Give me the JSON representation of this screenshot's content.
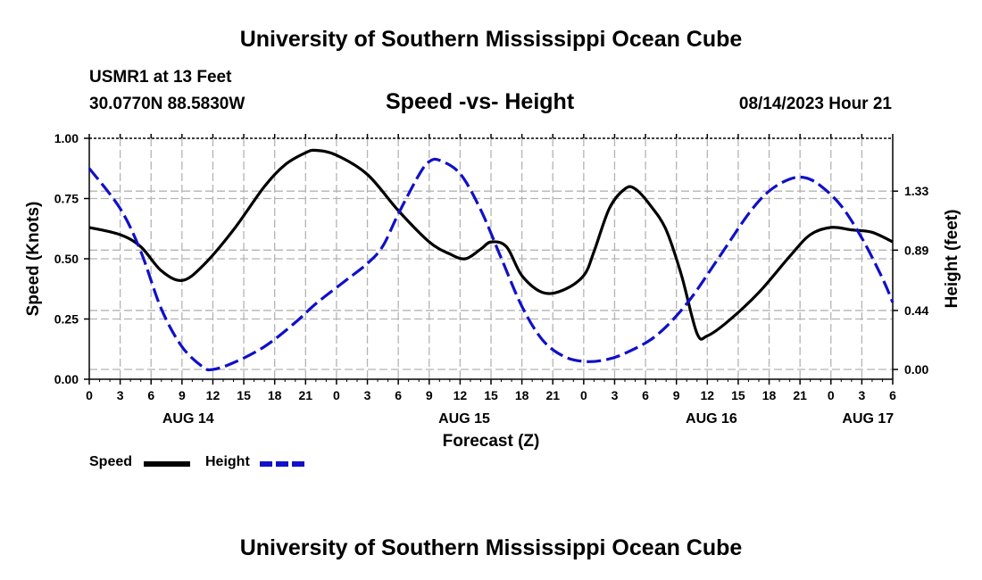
{
  "header": {
    "title": "University of Southern Mississippi Ocean Cube",
    "station": "USMR1 at 13 Feet",
    "coords": "30.0770N  88.5830W",
    "chart_title": "Speed -vs- Height",
    "issued": "08/14/2023 Hour 21"
  },
  "footer": {
    "title": "University of Southern Mississippi Ocean Cube"
  },
  "legend": {
    "speed_label": "Speed",
    "height_label": "Height"
  },
  "colors": {
    "speed": "#000000",
    "height": "#1010c8",
    "grid": "#b4b4b4"
  },
  "chart_data": {
    "type": "line",
    "title": "Speed -vs- Height",
    "xlabel": "Forecast (Z)",
    "ylabel": "Speed (Knots)",
    "y2label": "Height (feet)",
    "xlim": [
      0,
      78
    ],
    "ylim": [
      0,
      1.0
    ],
    "y2lim": [
      -0.073,
      1.724
    ],
    "x_ticks": [
      {
        "x": 0,
        "label": "0"
      },
      {
        "x": 3,
        "label": "3"
      },
      {
        "x": 6,
        "label": "6"
      },
      {
        "x": 9,
        "label": "9"
      },
      {
        "x": 12,
        "label": "12"
      },
      {
        "x": 15,
        "label": "15"
      },
      {
        "x": 18,
        "label": "18"
      },
      {
        "x": 21,
        "label": "21"
      },
      {
        "x": 24,
        "label": "0"
      },
      {
        "x": 27,
        "label": "3"
      },
      {
        "x": 30,
        "label": "6"
      },
      {
        "x": 33,
        "label": "9"
      },
      {
        "x": 36,
        "label": "12"
      },
      {
        "x": 39,
        "label": "15"
      },
      {
        "x": 42,
        "label": "18"
      },
      {
        "x": 45,
        "label": "21"
      },
      {
        "x": 48,
        "label": "0"
      },
      {
        "x": 51,
        "label": "3"
      },
      {
        "x": 54,
        "label": "6"
      },
      {
        "x": 57,
        "label": "9"
      },
      {
        "x": 60,
        "label": "12"
      },
      {
        "x": 63,
        "label": "15"
      },
      {
        "x": 66,
        "label": "18"
      },
      {
        "x": 69,
        "label": "21"
      },
      {
        "x": 72,
        "label": "0"
      },
      {
        "x": 75,
        "label": "3"
      },
      {
        "x": 78,
        "label": "6"
      }
    ],
    "date_labels": [
      {
        "x": 9.6,
        "label": "AUG 14"
      },
      {
        "x": 36.4,
        "label": "AUG 15"
      },
      {
        "x": 60.4,
        "label": "AUG 16"
      },
      {
        "x": 75.6,
        "label": "AUG 17"
      }
    ],
    "y_ticks": [
      {
        "v": 0.0,
        "label": "0.00"
      },
      {
        "v": 0.25,
        "label": "0.25"
      },
      {
        "v": 0.5,
        "label": "0.50"
      },
      {
        "v": 0.75,
        "label": "0.75"
      },
      {
        "v": 1.0,
        "label": "1.00"
      }
    ],
    "y2_ticks": [
      {
        "v": 0.0,
        "label": "0.00"
      },
      {
        "v": 0.44,
        "label": "0.44"
      },
      {
        "v": 0.89,
        "label": "0.89"
      },
      {
        "v": 1.33,
        "label": "1.33"
      }
    ],
    "series": [
      {
        "name": "Speed",
        "axis": "left",
        "style": "solid",
        "points": [
          [
            0,
            0.63
          ],
          [
            3,
            0.6
          ],
          [
            5,
            0.55
          ],
          [
            7,
            0.45
          ],
          [
            9,
            0.41
          ],
          [
            11,
            0.47
          ],
          [
            14,
            0.62
          ],
          [
            17,
            0.8
          ],
          [
            19,
            0.89
          ],
          [
            21,
            0.94
          ],
          [
            22,
            0.95
          ],
          [
            24,
            0.93
          ],
          [
            27,
            0.85
          ],
          [
            30,
            0.7
          ],
          [
            33,
            0.57
          ],
          [
            35,
            0.52
          ],
          [
            36.5,
            0.5
          ],
          [
            38,
            0.54
          ],
          [
            39,
            0.57
          ],
          [
            40.5,
            0.55
          ],
          [
            42,
            0.43
          ],
          [
            44,
            0.36
          ],
          [
            46,
            0.37
          ],
          [
            48,
            0.43
          ],
          [
            49,
            0.53
          ],
          [
            50.5,
            0.71
          ],
          [
            52,
            0.79
          ],
          [
            53,
            0.79
          ],
          [
            54.5,
            0.72
          ],
          [
            56,
            0.62
          ],
          [
            57.5,
            0.43
          ],
          [
            59,
            0.19
          ],
          [
            60,
            0.18
          ],
          [
            62,
            0.24
          ],
          [
            65,
            0.36
          ],
          [
            68,
            0.51
          ],
          [
            70,
            0.6
          ],
          [
            72,
            0.63
          ],
          [
            74,
            0.62
          ],
          [
            76,
            0.61
          ],
          [
            78,
            0.57
          ]
        ]
      },
      {
        "name": "Height",
        "axis": "right",
        "style": "dashed",
        "points": [
          [
            0,
            1.5
          ],
          [
            3,
            1.2
          ],
          [
            5,
            0.88
          ],
          [
            7,
            0.45
          ],
          [
            9,
            0.17
          ],
          [
            11,
            0.02
          ],
          [
            12,
            0.0
          ],
          [
            14,
            0.05
          ],
          [
            17,
            0.17
          ],
          [
            20,
            0.35
          ],
          [
            22,
            0.49
          ],
          [
            25,
            0.67
          ],
          [
            27,
            0.79
          ],
          [
            28.5,
            0.92
          ],
          [
            30,
            1.16
          ],
          [
            32,
            1.45
          ],
          [
            33,
            1.55
          ],
          [
            34,
            1.56
          ],
          [
            36,
            1.46
          ],
          [
            38,
            1.19
          ],
          [
            40,
            0.83
          ],
          [
            42,
            0.47
          ],
          [
            44,
            0.22
          ],
          [
            46,
            0.1
          ],
          [
            48,
            0.06
          ],
          [
            50,
            0.07
          ],
          [
            52,
            0.12
          ],
          [
            55,
            0.25
          ],
          [
            58,
            0.49
          ],
          [
            61,
            0.82
          ],
          [
            64,
            1.16
          ],
          [
            66,
            1.33
          ],
          [
            68,
            1.42
          ],
          [
            69.5,
            1.43
          ],
          [
            71,
            1.37
          ],
          [
            73,
            1.22
          ],
          [
            75,
            0.98
          ],
          [
            77,
            0.68
          ],
          [
            78,
            0.5
          ]
        ]
      }
    ]
  }
}
